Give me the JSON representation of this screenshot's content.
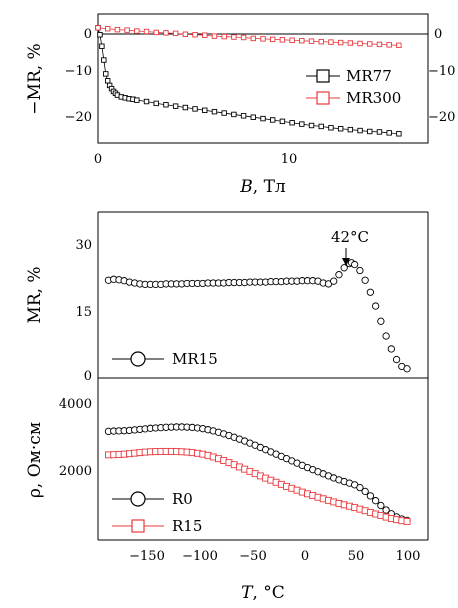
{
  "chart_data": [
    {
      "type": "scatter",
      "panel": "top",
      "xlabel_symbol": "B",
      "xlabel_unit": ", Тл",
      "ylabel": "−MR, %",
      "xlim": [
        0,
        17
      ],
      "ylim": [
        -25,
        3
      ],
      "x_ticks": [
        "0",
        "10"
      ],
      "y_ticks_left": [
        "0",
        "−10",
        "−20"
      ],
      "y_ticks_right": [
        "0",
        "−10",
        "−20"
      ],
      "legend_position": "right",
      "series": [
        {
          "name": "MR77",
          "color": "#000000",
          "marker": "square",
          "points": [
            [
              0,
              0
            ],
            [
              0.1,
              -1.5
            ],
            [
              0.2,
              -4
            ],
            [
              0.3,
              -7
            ],
            [
              0.4,
              -10
            ],
            [
              0.5,
              -11.5
            ],
            [
              0.6,
              -12.5
            ],
            [
              0.7,
              -13.2
            ],
            [
              0.8,
              -13.8
            ],
            [
              0.9,
              -14.2
            ],
            [
              1.0,
              -14.6
            ],
            [
              1.2,
              -15
            ],
            [
              1.4,
              -15.2
            ],
            [
              1.6,
              -15.4
            ],
            [
              1.8,
              -15.5
            ],
            [
              2,
              -15.7
            ],
            [
              2.5,
              -16
            ],
            [
              3,
              -16.4
            ],
            [
              3.5,
              -16.7
            ],
            [
              4,
              -17
            ],
            [
              4.5,
              -17.3
            ],
            [
              5,
              -17.6
            ],
            [
              5.5,
              -17.9
            ],
            [
              6,
              -18.2
            ],
            [
              6.5,
              -18.5
            ],
            [
              7,
              -18.8
            ],
            [
              7.5,
              -19.1
            ],
            [
              8,
              -19.4
            ],
            [
              8.5,
              -19.7
            ],
            [
              9,
              -20
            ],
            [
              9.5,
              -20.3
            ],
            [
              10,
              -20.6
            ],
            [
              10.5,
              -20.9
            ],
            [
              11,
              -21.2
            ],
            [
              11.5,
              -21.4
            ],
            [
              12,
              -21.7
            ],
            [
              12.5,
              -21.9
            ],
            [
              13,
              -22.1
            ],
            [
              13.5,
              -22.3
            ],
            [
              14,
              -22.5
            ],
            [
              14.5,
              -22.6
            ],
            [
              15,
              -22.8
            ],
            [
              15.5,
              -23
            ]
          ]
        },
        {
          "name": "MR300",
          "color": "#e8383d",
          "marker": "square",
          "points": [
            [
              0,
              0
            ],
            [
              0.5,
              -0.2
            ],
            [
              1,
              -0.4
            ],
            [
              1.5,
              -0.5
            ],
            [
              2,
              -0.7
            ],
            [
              2.5,
              -0.8
            ],
            [
              3,
              -1
            ],
            [
              3.5,
              -1.1
            ],
            [
              4,
              -1.2
            ],
            [
              4.5,
              -1.4
            ],
            [
              5,
              -1.5
            ],
            [
              5.5,
              -1.6
            ],
            [
              6,
              -1.8
            ],
            [
              6.5,
              -1.9
            ],
            [
              7,
              -2
            ],
            [
              7.5,
              -2.1
            ],
            [
              8,
              -2.3
            ],
            [
              8.5,
              -2.4
            ],
            [
              9,
              -2.5
            ],
            [
              9.5,
              -2.6
            ],
            [
              10,
              -2.7
            ],
            [
              10.5,
              -2.8
            ],
            [
              11,
              -2.9
            ],
            [
              11.5,
              -3
            ],
            [
              12,
              -3.1
            ],
            [
              12.5,
              -3.2
            ],
            [
              13,
              -3.3
            ],
            [
              13.5,
              -3.4
            ],
            [
              14,
              -3.5
            ],
            [
              14.5,
              -3.6
            ],
            [
              15,
              -3.7
            ],
            [
              15.5,
              -3.8
            ]
          ]
        }
      ]
    },
    {
      "type": "scatter",
      "panel": "middle",
      "ylabel": "MR, %",
      "xlim": [
        -200,
        115
      ],
      "ylim": [
        0,
        36
      ],
      "y_ticks": [
        "0",
        "15",
        "30"
      ],
      "annotation": "42°C",
      "annotation_x": 42,
      "legend_position": "bottom-left",
      "series": [
        {
          "name": "MR15",
          "color": "#000000",
          "marker": "circle",
          "points": [
            [
              -190,
              21.2
            ],
            [
              -185,
              21.4
            ],
            [
              -180,
              21.3
            ],
            [
              -175,
              21.1
            ],
            [
              -170,
              20.8
            ],
            [
              -165,
              20.6
            ],
            [
              -160,
              20.4
            ],
            [
              -155,
              20.3
            ],
            [
              -150,
              20.3
            ],
            [
              -145,
              20.3
            ],
            [
              -140,
              20.3
            ],
            [
              -135,
              20.4
            ],
            [
              -130,
              20.4
            ],
            [
              -125,
              20.4
            ],
            [
              -120,
              20.4
            ],
            [
              -115,
              20.5
            ],
            [
              -110,
              20.5
            ],
            [
              -105,
              20.5
            ],
            [
              -100,
              20.5
            ],
            [
              -95,
              20.6
            ],
            [
              -90,
              20.6
            ],
            [
              -85,
              20.6
            ],
            [
              -80,
              20.6
            ],
            [
              -75,
              20.7
            ],
            [
              -70,
              20.7
            ],
            [
              -65,
              20.7
            ],
            [
              -60,
              20.7
            ],
            [
              -55,
              20.8
            ],
            [
              -50,
              20.8
            ],
            [
              -45,
              20.8
            ],
            [
              -40,
              20.8
            ],
            [
              -35,
              20.9
            ],
            [
              -30,
              20.9
            ],
            [
              -25,
              20.9
            ],
            [
              -20,
              21
            ],
            [
              -15,
              21
            ],
            [
              -10,
              21
            ],
            [
              -5,
              21.1
            ],
            [
              0,
              21.1
            ],
            [
              5,
              21.1
            ],
            [
              10,
              21
            ],
            [
              15,
              20.6
            ],
            [
              20,
              20.4
            ],
            [
              25,
              21
            ],
            [
              30,
              22.4
            ],
            [
              35,
              23.9
            ],
            [
              40,
              24.8
            ],
            [
              42,
              25
            ],
            [
              45,
              24.6
            ],
            [
              50,
              23.3
            ],
            [
              55,
              21.2
            ],
            [
              60,
              18.6
            ],
            [
              65,
              15.6
            ],
            [
              70,
              12.3
            ],
            [
              75,
              9.1
            ],
            [
              80,
              6.3
            ],
            [
              85,
              4
            ],
            [
              90,
              2.5
            ],
            [
              95,
              2
            ]
          ]
        }
      ]
    },
    {
      "type": "scatter",
      "panel": "bottom",
      "xlabel_symbol": "T",
      "xlabel_unit": ", °C",
      "ylabel": "ρ, Ом·см",
      "xlim": [
        -200,
        115
      ],
      "ylim": [
        0,
        4700
      ],
      "x_ticks": [
        "−150",
        "−100",
        "−50",
        "0",
        "50",
        "100"
      ],
      "y_ticks": [
        "2000",
        "4000"
      ],
      "legend_position": "bottom-left",
      "series": [
        {
          "name": "R0",
          "color": "#000000",
          "marker": "circle",
          "points": [
            [
              -190,
              3150
            ],
            [
              -185,
              3160
            ],
            [
              -180,
              3165
            ],
            [
              -175,
              3170
            ],
            [
              -170,
              3180
            ],
            [
              -165,
              3195
            ],
            [
              -160,
              3210
            ],
            [
              -155,
              3225
            ],
            [
              -150,
              3240
            ],
            [
              -145,
              3250
            ],
            [
              -140,
              3260
            ],
            [
              -135,
              3270
            ],
            [
              -130,
              3275
            ],
            [
              -125,
              3280
            ],
            [
              -120,
              3280
            ],
            [
              -115,
              3275
            ],
            [
              -110,
              3265
            ],
            [
              -105,
              3250
            ],
            [
              -100,
              3230
            ],
            [
              -95,
              3200
            ],
            [
              -90,
              3165
            ],
            [
              -85,
              3125
            ],
            [
              -80,
              3080
            ],
            [
              -75,
              3030
            ],
            [
              -70,
              2980
            ],
            [
              -65,
              2925
            ],
            [
              -60,
              2870
            ],
            [
              -55,
              2810
            ],
            [
              -50,
              2750
            ],
            [
              -45,
              2685
            ],
            [
              -40,
              2620
            ],
            [
              -35,
              2555
            ],
            [
              -30,
              2490
            ],
            [
              -25,
              2425
            ],
            [
              -20,
              2360
            ],
            [
              -15,
              2295
            ],
            [
              -10,
              2230
            ],
            [
              -5,
              2165
            ],
            [
              0,
              2100
            ],
            [
              5,
              2040
            ],
            [
              10,
              1980
            ],
            [
              15,
              1920
            ],
            [
              20,
              1860
            ],
            [
              25,
              1800
            ],
            [
              30,
              1745
            ],
            [
              35,
              1695
            ],
            [
              40,
              1650
            ],
            [
              45,
              1600
            ],
            [
              50,
              1520
            ],
            [
              55,
              1410
            ],
            [
              60,
              1280
            ],
            [
              65,
              1140
            ],
            [
              70,
              1000
            ],
            [
              75,
              870
            ],
            [
              80,
              760
            ],
            [
              85,
              670
            ],
            [
              90,
              610
            ],
            [
              95,
              570
            ]
          ]
        },
        {
          "name": "R15",
          "color": "#e8383d",
          "marker": "square",
          "points": [
            [
              -190,
              2470
            ],
            [
              -185,
              2475
            ],
            [
              -180,
              2480
            ],
            [
              -175,
              2490
            ],
            [
              -170,
              2505
            ],
            [
              -165,
              2520
            ],
            [
              -160,
              2535
            ],
            [
              -155,
              2550
            ],
            [
              -150,
              2560
            ],
            [
              -145,
              2565
            ],
            [
              -140,
              2570
            ],
            [
              -135,
              2570
            ],
            [
              -130,
              2570
            ],
            [
              -125,
              2565
            ],
            [
              -120,
              2560
            ],
            [
              -115,
              2550
            ],
            [
              -110,
              2535
            ],
            [
              -105,
              2515
            ],
            [
              -100,
              2490
            ],
            [
              -95,
              2455
            ],
            [
              -90,
              2410
            ],
            [
              -85,
              2360
            ],
            [
              -80,
              2305
            ],
            [
              -75,
              2245
            ],
            [
              -70,
              2185
            ],
            [
              -65,
              2120
            ],
            [
              -60,
              2055
            ],
            [
              -55,
              1990
            ],
            [
              -50,
              1925
            ],
            [
              -45,
              1860
            ],
            [
              -40,
              1795
            ],
            [
              -35,
              1735
            ],
            [
              -30,
              1675
            ],
            [
              -25,
              1615
            ],
            [
              -20,
              1555
            ],
            [
              -15,
              1500
            ],
            [
              -10,
              1445
            ],
            [
              -5,
              1390
            ],
            [
              0,
              1340
            ],
            [
              5,
              1290
            ],
            [
              10,
              1240
            ],
            [
              15,
              1195
            ],
            [
              20,
              1150
            ],
            [
              25,
              1105
            ],
            [
              30,
              1060
            ],
            [
              35,
              1020
            ],
            [
              40,
              980
            ],
            [
              45,
              940
            ],
            [
              50,
              895
            ],
            [
              55,
              850
            ],
            [
              60,
              800
            ],
            [
              65,
              755
            ],
            [
              70,
              710
            ],
            [
              75,
              665
            ],
            [
              80,
              625
            ],
            [
              85,
              590
            ],
            [
              90,
              560
            ],
            [
              95,
              540
            ]
          ]
        }
      ]
    }
  ]
}
